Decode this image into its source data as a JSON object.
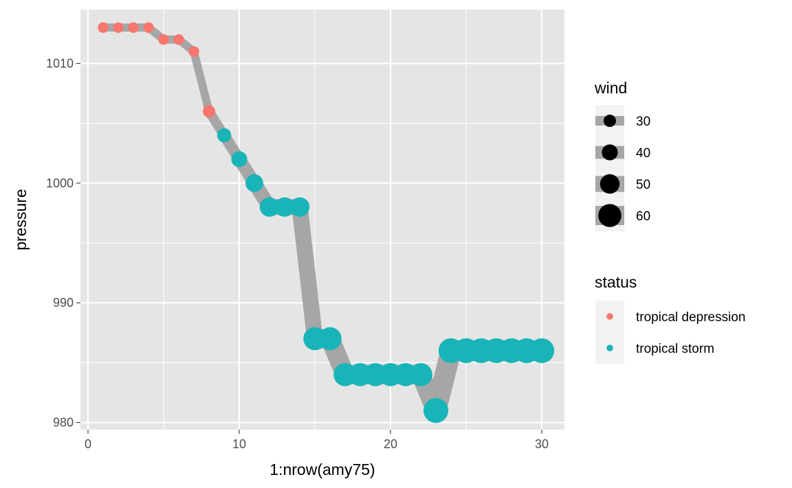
{
  "chart_data": {
    "type": "line",
    "xlabel": "1:nrow(amy75)",
    "ylabel": "pressure",
    "xlim": [
      -0.5,
      31.5
    ],
    "ylim": [
      979.4,
      1014.5
    ],
    "x_ticks": [
      0,
      10,
      20,
      30
    ],
    "y_ticks": [
      980,
      990,
      1000,
      1010
    ],
    "grid": true,
    "panel_background": "#e5e5e5",
    "grid_color": "#ffffff",
    "line_color": "#a6a6a6",
    "legend_position": "right",
    "x": [
      1,
      2,
      3,
      4,
      5,
      6,
      7,
      8,
      9,
      10,
      11,
      12,
      13,
      14,
      15,
      16,
      17,
      18,
      19,
      20,
      21,
      22,
      23,
      24,
      25,
      26,
      27,
      28,
      29,
      30
    ],
    "pressure": [
      1013,
      1013,
      1013,
      1013,
      1012,
      1012,
      1011,
      1006,
      1004,
      1002,
      1000,
      998,
      998,
      998,
      987,
      987,
      984,
      984,
      984,
      984,
      984,
      984,
      981,
      986,
      986,
      986,
      986,
      986,
      986,
      986
    ],
    "wind": [
      25,
      25,
      25,
      25,
      25,
      25,
      25,
      30,
      35,
      40,
      45,
      50,
      50,
      50,
      60,
      60,
      60,
      60,
      60,
      60,
      60,
      60,
      65,
      65,
      65,
      65,
      65,
      65,
      65,
      65
    ],
    "status": [
      "tropical depression",
      "tropical depression",
      "tropical depression",
      "tropical depression",
      "tropical depression",
      "tropical depression",
      "tropical depression",
      "tropical depression",
      "tropical storm",
      "tropical storm",
      "tropical storm",
      "tropical storm",
      "tropical storm",
      "tropical storm",
      "tropical storm",
      "tropical storm",
      "tropical storm",
      "tropical storm",
      "tropical storm",
      "tropical storm",
      "tropical storm",
      "tropical storm",
      "tropical storm",
      "tropical storm",
      "tropical storm",
      "tropical storm",
      "tropical storm",
      "tropical storm",
      "tropical storm",
      "tropical storm"
    ],
    "legend_wind": {
      "title": "wind",
      "values": [
        30,
        40,
        50,
        60
      ],
      "labels": [
        "30",
        "40",
        "50",
        "60"
      ]
    },
    "legend_status": {
      "title": "status",
      "items": [
        {
          "label": "tropical depression",
          "color": "#f8766d"
        },
        {
          "label": "tropical storm",
          "color": "#19b4b8"
        }
      ]
    }
  }
}
